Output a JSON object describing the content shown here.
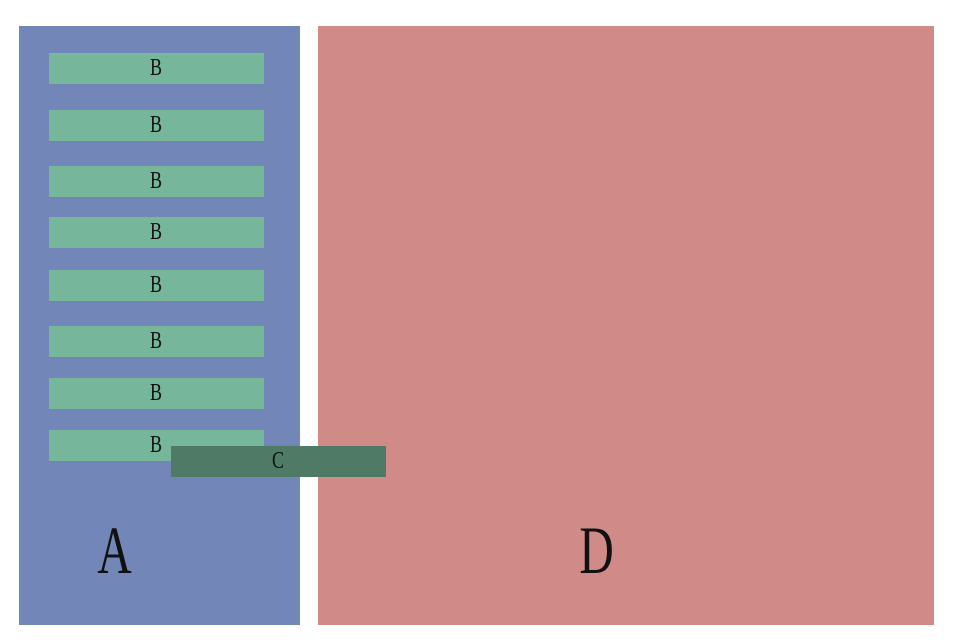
{
  "panel_a": {
    "label": "A",
    "items": [
      "B",
      "B",
      "B",
      "B",
      "B",
      "B",
      "B",
      "B"
    ]
  },
  "overlay": {
    "label": "C"
  },
  "panel_d": {
    "label": "D"
  }
}
